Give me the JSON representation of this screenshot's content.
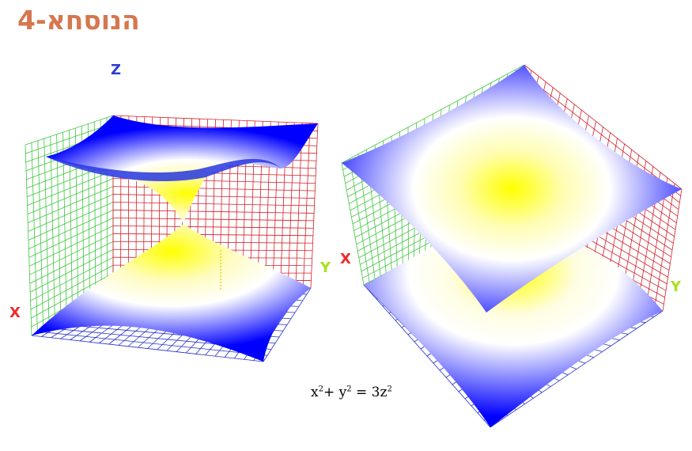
{
  "title": {
    "text": "הנוסחא-4",
    "color": "#d6774f"
  },
  "equation": {
    "t1": "x",
    "t2": "2",
    "t3": "+ y",
    "t4": "2",
    "t5": " = 3z",
    "t6": "2"
  },
  "axes": {
    "z": "Z",
    "x": "X",
    "y": "Y"
  },
  "colors": {
    "z_axis": "#2b3fd0",
    "x_axis": "#ef2b2b",
    "y_axis": "#a8e01f",
    "grid_green": "#3ec63e",
    "grid_red": "#d61e28",
    "grid_blue": "#2631c8",
    "surface_edge": "#0000ff",
    "surface_mid": "#ffffff",
    "surface_center": "#ffff00"
  }
}
